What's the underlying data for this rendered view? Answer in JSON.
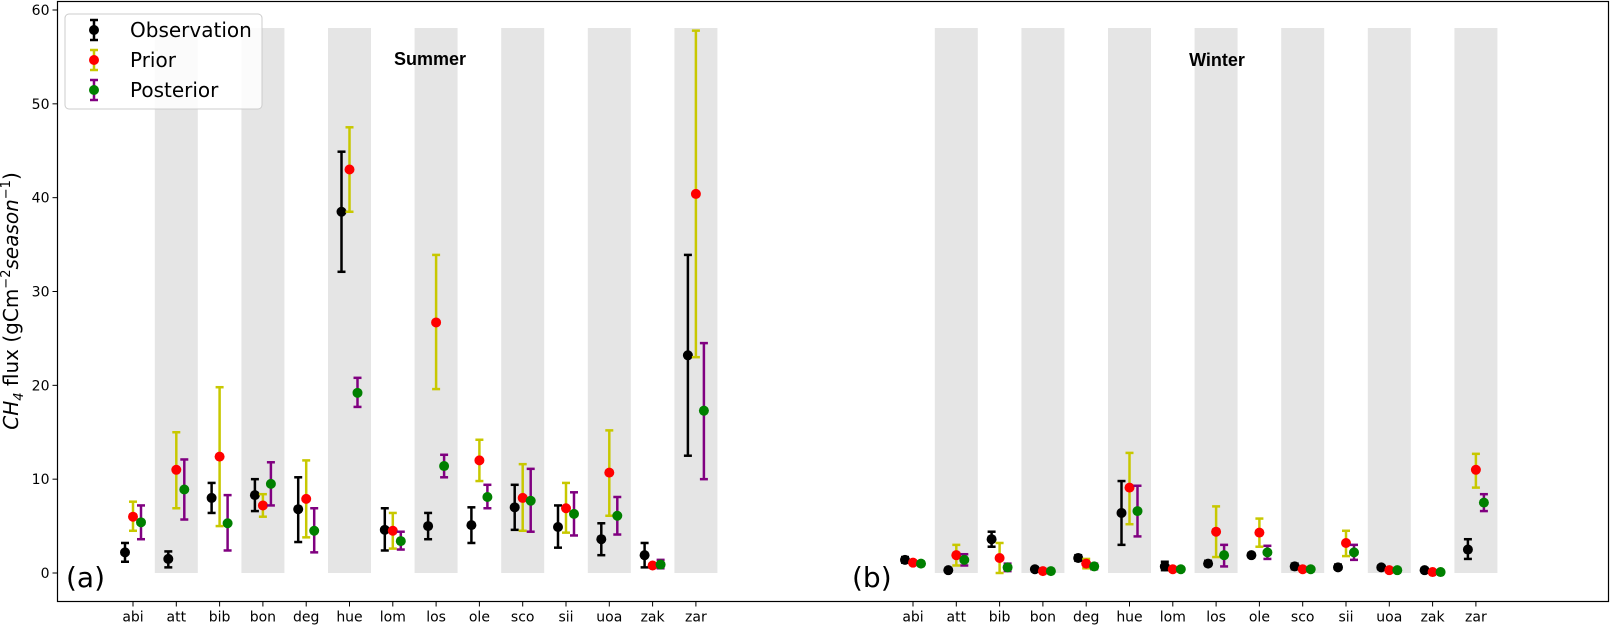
{
  "chart_data": {
    "type": "scatter",
    "ylabel_main": "CH",
    "ylabel_sub": "4",
    "ylabel_unit_prefix": " flux (gCm",
    "ylabel_unit_exp1": "−2",
    "ylabel_unit_mid": "season",
    "ylabel_unit_exp2": "−1",
    "ylabel_unit_suffix": ")",
    "ylim": [
      -3,
      60
    ],
    "yticks": [
      "0",
      "10",
      "20",
      "30",
      "40",
      "50",
      "60"
    ],
    "sites": [
      "abi",
      "att",
      "bib",
      "bon",
      "deg",
      "hue",
      "lom",
      "los",
      "ole",
      "sco",
      "sii",
      "uoa",
      "zak",
      "zar"
    ],
    "legend": {
      "placement": "upper-left",
      "entries": [
        "Observation",
        "Prior",
        "Posterior"
      ]
    },
    "series_styles": {
      "observation": {
        "marker": "#000000",
        "errorbar": "#000000"
      },
      "prior": {
        "marker": "#ff0000",
        "errorbar": "#c8c800"
      },
      "posterior": {
        "marker": "#008000",
        "errorbar": "#800080"
      }
    },
    "shading": "alternate-sites-grey",
    "panels": [
      {
        "letter": "(a)",
        "title": "Summer",
        "observation": {
          "values": [
            2.2,
            1.5,
            8.0,
            8.3,
            6.8,
            38.5,
            4.6,
            5.0,
            5.1,
            7.0,
            4.9,
            3.6,
            1.9,
            23.2
          ],
          "err_low": [
            1.2,
            0.6,
            6.4,
            6.6,
            3.3,
            32.1,
            2.4,
            3.6,
            3.2,
            4.6,
            2.7,
            1.9,
            0.6,
            12.5
          ],
          "err_high": [
            3.2,
            2.3,
            9.6,
            10.0,
            10.2,
            44.9,
            6.9,
            6.4,
            7.0,
            9.4,
            7.2,
            5.3,
            3.2,
            33.9
          ]
        },
        "prior": {
          "values": [
            6.0,
            11.0,
            12.4,
            7.2,
            7.9,
            43.0,
            4.5,
            26.7,
            12.0,
            8.0,
            6.9,
            10.7,
            0.8,
            40.4
          ],
          "err_low": [
            4.5,
            6.9,
            5.0,
            6.0,
            3.8,
            38.5,
            2.6,
            19.6,
            9.8,
            4.5,
            4.3,
            6.1,
            0.6,
            23.0
          ],
          "err_high": [
            7.6,
            15.0,
            19.8,
            8.4,
            12.0,
            47.5,
            6.4,
            33.9,
            14.2,
            11.6,
            9.6,
            15.2,
            1.0,
            57.8
          ]
        },
        "posterior": {
          "values": [
            5.4,
            8.9,
            5.3,
            9.5,
            4.5,
            19.2,
            3.4,
            11.4,
            8.1,
            7.7,
            6.3,
            6.1,
            0.9,
            17.3
          ],
          "err_low": [
            3.6,
            5.7,
            2.4,
            7.2,
            2.2,
            17.7,
            2.5,
            10.2,
            6.9,
            4.4,
            4.0,
            4.1,
            0.5,
            10.0
          ],
          "err_high": [
            7.2,
            12.1,
            8.3,
            11.8,
            6.9,
            20.8,
            4.4,
            12.6,
            9.4,
            11.1,
            8.6,
            8.1,
            1.4,
            24.5
          ]
        }
      },
      {
        "letter": "(b)",
        "title": "Winter",
        "observation": {
          "values": [
            1.4,
            0.3,
            3.6,
            0.4,
            1.6,
            6.4,
            0.7,
            1.0,
            1.9,
            0.7,
            0.6,
            0.6,
            0.3,
            2.5
          ],
          "err_low": [
            1.1,
            0.2,
            2.8,
            0.2,
            1.3,
            3.0,
            0.3,
            0.8,
            1.7,
            0.4,
            0.4,
            0.4,
            0.1,
            1.5
          ],
          "err_high": [
            1.7,
            0.4,
            4.4,
            0.6,
            1.9,
            9.8,
            1.2,
            1.3,
            2.1,
            1.0,
            0.9,
            0.8,
            0.5,
            3.6
          ]
        },
        "prior": {
          "values": [
            1.1,
            1.9,
            1.6,
            0.2,
            1.0,
            9.1,
            0.4,
            4.4,
            4.3,
            0.4,
            3.2,
            0.3,
            0.1,
            11.0
          ],
          "err_low": [
            0.9,
            0.8,
            0.0,
            0.1,
            0.5,
            5.2,
            0.2,
            1.7,
            2.8,
            0.2,
            1.8,
            0.1,
            0.0,
            9.1
          ],
          "err_high": [
            1.3,
            3.0,
            3.2,
            0.3,
            1.5,
            12.8,
            0.6,
            7.1,
            5.8,
            0.6,
            4.5,
            0.5,
            0.2,
            12.7
          ]
        },
        "posterior": {
          "values": [
            1.0,
            1.4,
            0.6,
            0.2,
            0.7,
            6.6,
            0.4,
            1.9,
            2.2,
            0.4,
            2.2,
            0.3,
            0.1,
            7.5
          ],
          "err_low": [
            0.8,
            0.8,
            0.2,
            0.1,
            0.4,
            3.9,
            0.2,
            0.7,
            1.5,
            0.2,
            1.4,
            0.1,
            0.0,
            6.6
          ],
          "err_high": [
            1.2,
            2.0,
            1.0,
            0.3,
            1.0,
            9.3,
            0.6,
            3.0,
            2.9,
            0.6,
            3.0,
            0.5,
            0.2,
            8.4
          ]
        }
      }
    ]
  }
}
